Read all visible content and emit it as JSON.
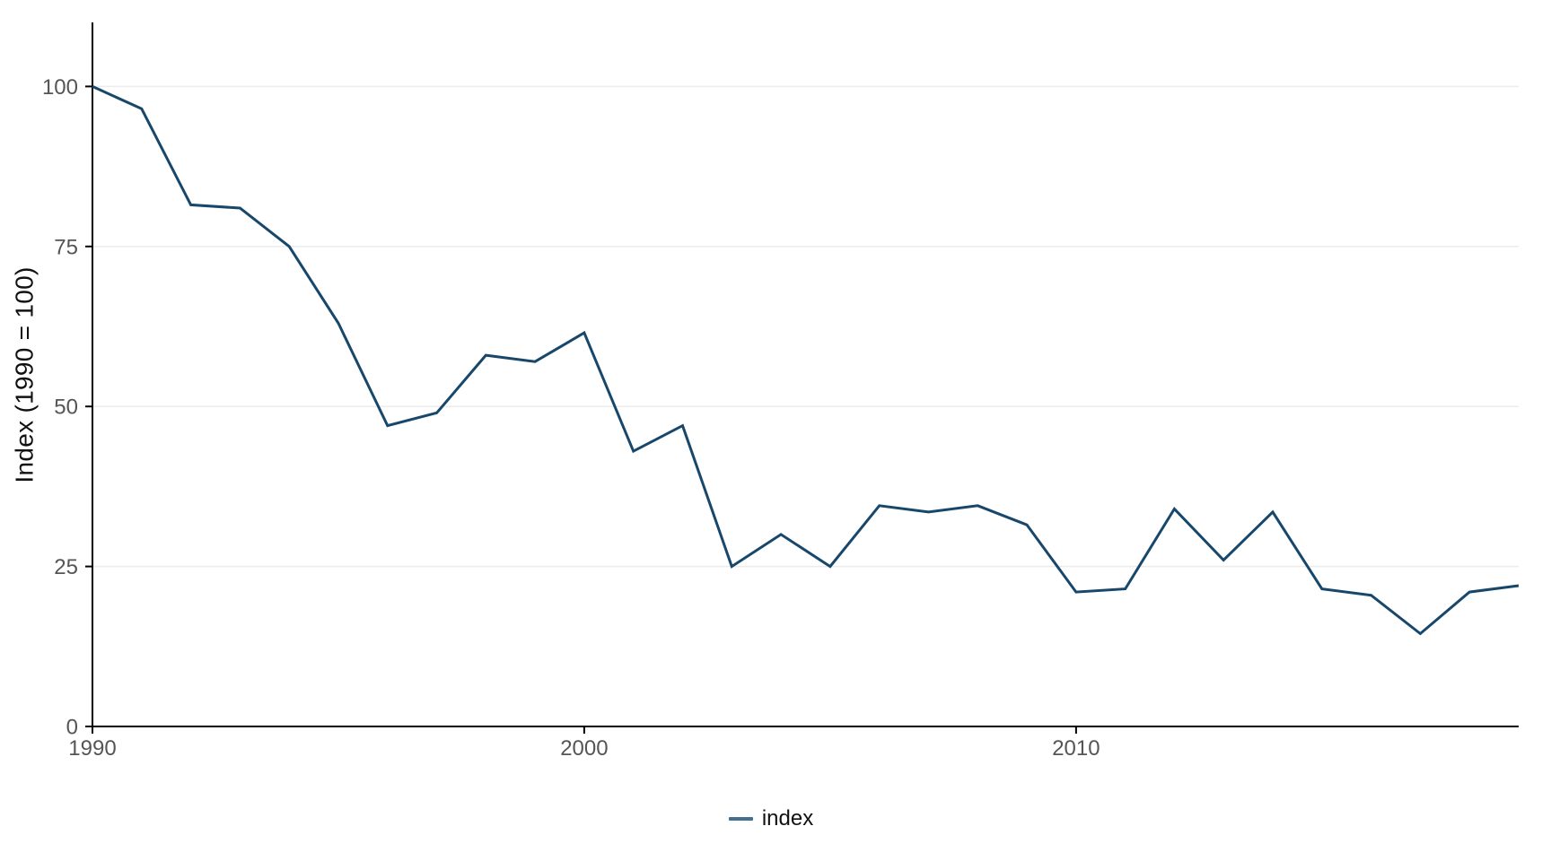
{
  "chart_data": {
    "type": "line",
    "title": "",
    "xlabel": "",
    "ylabel": "Index (1990 = 100)",
    "x": [
      1990,
      1991,
      1992,
      1993,
      1994,
      1995,
      1996,
      1997,
      1998,
      1999,
      2000,
      2001,
      2002,
      2003,
      2004,
      2005,
      2006,
      2007,
      2008,
      2009,
      2010,
      2011,
      2012,
      2013,
      2014,
      2015,
      2016,
      2017,
      2018,
      2019
    ],
    "series": [
      {
        "name": "index",
        "values": [
          100,
          96.5,
          81.5,
          81,
          75,
          63,
          47,
          49,
          58,
          57,
          61.5,
          43,
          47,
          25,
          30,
          25,
          34.5,
          33.5,
          34.5,
          31.5,
          21,
          21.5,
          34,
          26,
          33.5,
          21.5,
          20.5,
          14.5,
          21,
          22
        ]
      }
    ],
    "xlim": [
      1990,
      2019
    ],
    "ylim": [
      0,
      110
    ],
    "x_ticks": [
      1990,
      2000,
      2010
    ],
    "y_ticks": [
      0,
      25,
      50,
      75,
      100
    ],
    "grid": true,
    "legend": {
      "label": "index",
      "position": "bottom",
      "swatch_color": "#44708F"
    },
    "colors": {
      "line": "#17476B",
      "grid": "#ECECEC",
      "axis": "#000000",
      "tick_label": "#555555",
      "text": "#111111",
      "background": "#FFFFFF"
    }
  }
}
